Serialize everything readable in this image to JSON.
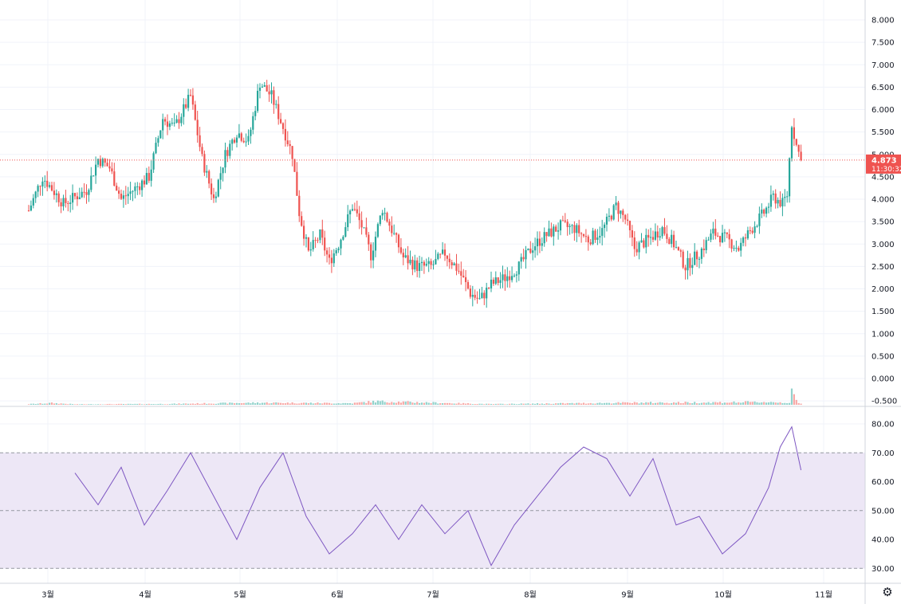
{
  "colors": {
    "up": "#26a69a",
    "up_volume": "#92d2cc",
    "down": "#ef5350",
    "down_volume": "#f7a9a7",
    "rsi_line": "#7e57c2",
    "rsi_band": "#ede7f6",
    "grid": "#f0f3fa",
    "price_tag_bg": "#ef5350"
  },
  "price_tag": {
    "value": "4.873",
    "time": "11:30:32"
  },
  "settings_icon": "gear-icon",
  "chart_data": [
    {
      "type": "candlestick",
      "title": "",
      "x_tick_labels": [
        "3월",
        "4월",
        "5월",
        "6월",
        "7월",
        "8월",
        "9월",
        "10월",
        "11월"
      ],
      "y_tick_labels": [
        "8.000",
        "7.500",
        "7.000",
        "6.500",
        "6.000",
        "5.500",
        "5.000",
        "4.500",
        "4.000",
        "3.500",
        "3.000",
        "2.500",
        "2.000",
        "1.500",
        "1.000",
        "0.500",
        "0.000",
        "-0.500"
      ],
      "ylim": [
        -0.5,
        8.4
      ],
      "grid": true,
      "last_price": 4.873,
      "close_waypoints": [
        [
          0,
          3.75
        ],
        [
          6,
          4.5
        ],
        [
          15,
          3.9
        ],
        [
          25,
          4.2
        ],
        [
          30,
          4.9
        ],
        [
          35,
          4.7
        ],
        [
          40,
          4.0
        ],
        [
          45,
          4.2
        ],
        [
          52,
          4.5
        ],
        [
          58,
          5.8
        ],
        [
          63,
          5.6
        ],
        [
          70,
          6.3
        ],
        [
          75,
          4.9
        ],
        [
          80,
          4.0
        ],
        [
          85,
          5.0
        ],
        [
          90,
          5.5
        ],
        [
          95,
          5.3
        ],
        [
          100,
          6.6
        ],
        [
          105,
          6.3
        ],
        [
          110,
          5.6
        ],
        [
          114,
          5.0
        ],
        [
          117,
          3.7
        ],
        [
          121,
          2.8
        ],
        [
          126,
          3.2
        ],
        [
          130,
          2.6
        ],
        [
          134,
          3.0
        ],
        [
          140,
          3.85
        ],
        [
          144,
          3.4
        ],
        [
          148,
          2.75
        ],
        [
          153,
          3.8
        ],
        [
          158,
          3.2
        ],
        [
          162,
          2.7
        ],
        [
          168,
          2.5
        ],
        [
          174,
          2.5
        ],
        [
          180,
          2.8
        ],
        [
          186,
          2.4
        ],
        [
          191,
          1.9
        ],
        [
          195,
          1.75
        ],
        [
          200,
          2.1
        ],
        [
          206,
          2.25
        ],
        [
          212,
          2.5
        ],
        [
          218,
          2.95
        ],
        [
          224,
          3.2
        ],
        [
          230,
          3.4
        ],
        [
          236,
          3.35
        ],
        [
          242,
          3.1
        ],
        [
          248,
          3.3
        ],
        [
          254,
          3.85
        ],
        [
          258,
          3.55
        ],
        [
          262,
          2.9
        ],
        [
          268,
          3.1
        ],
        [
          274,
          3.35
        ],
        [
          279,
          3.0
        ],
        [
          284,
          2.5
        ],
        [
          290,
          2.8
        ],
        [
          296,
          3.25
        ],
        [
          302,
          3.1
        ],
        [
          307,
          2.9
        ],
        [
          312,
          3.3
        ],
        [
          318,
          3.7
        ],
        [
          322,
          4.05
        ],
        [
          326,
          3.9
        ],
        [
          328,
          4.1
        ],
        [
          330,
          5.7
        ],
        [
          332,
          5.2
        ],
        [
          334,
          4.87
        ]
      ],
      "volume_waypoints": [
        [
          0,
          0.2
        ],
        [
          10,
          0.5
        ],
        [
          20,
          0.15
        ],
        [
          60,
          0.25
        ],
        [
          100,
          0.6
        ],
        [
          140,
          0.45
        ],
        [
          150,
          1.0
        ],
        [
          200,
          0.2
        ],
        [
          260,
          0.6
        ],
        [
          300,
          0.7
        ],
        [
          320,
          0.8
        ],
        [
          329,
          0.6
        ],
        [
          330,
          6.0
        ],
        [
          331,
          2.2
        ],
        [
          333,
          0.4
        ],
        [
          334,
          0.3
        ]
      ]
    },
    {
      "type": "line",
      "title": "",
      "y_tick_labels": [
        "80.00",
        "70.00",
        "60.00",
        "50.00",
        "40.00",
        "30.00"
      ],
      "ylim": [
        27,
        84
      ],
      "band": [
        30,
        70
      ],
      "midline": 50,
      "x": [
        20,
        30,
        40,
        50,
        60,
        70,
        80,
        90,
        100,
        110,
        120,
        130,
        140,
        150,
        160,
        170,
        180,
        190,
        200,
        210,
        220,
        230,
        240,
        250,
        260,
        270,
        280,
        290,
        300,
        310,
        320,
        325,
        330,
        334
      ],
      "values": [
        63,
        52,
        65,
        45,
        57,
        70,
        55,
        40,
        58,
        70,
        48,
        35,
        42,
        52,
        40,
        52,
        42,
        50,
        31,
        45,
        55,
        65,
        72,
        68,
        55,
        68,
        45,
        48,
        35,
        42,
        58,
        72,
        79,
        64
      ]
    }
  ]
}
